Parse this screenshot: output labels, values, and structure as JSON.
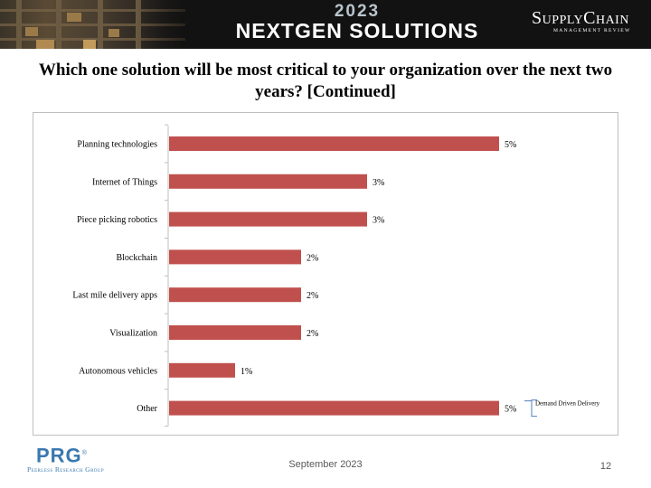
{
  "banner": {
    "year": "2023",
    "title": "NEXTGEN SOLUTIONS",
    "logo_main": "SupplyChain",
    "logo_sub": "MANAGEMENT REVIEW"
  },
  "slide_title": "Which one solution will be most critical to your organization over the next two years? [Continued]",
  "chart_data": {
    "type": "bar",
    "orientation": "horizontal",
    "title": "",
    "xlabel": "",
    "ylabel": "",
    "xlim": [
      0,
      6
    ],
    "categories": [
      "Planning technologies",
      "Internet of Things",
      "Piece picking robotics",
      "Blockchain",
      "Last mile delivery apps",
      "Visualization",
      "Autonomous vehicles",
      "Other"
    ],
    "values": [
      5,
      3,
      3,
      2,
      2,
      2,
      1,
      5
    ],
    "labels": [
      "5%",
      "3%",
      "3%",
      "2%",
      "2%",
      "2%",
      "1%",
      "5%"
    ],
    "bar_color": "#c0504d",
    "annotations": [
      {
        "category": "Other",
        "text": "Demand Driven Delivery"
      }
    ]
  },
  "footer": {
    "date": "September 2023",
    "page": "12",
    "org_mark": "PRG",
    "org_symbol": "®",
    "org_name": "Peerless Research Group"
  }
}
